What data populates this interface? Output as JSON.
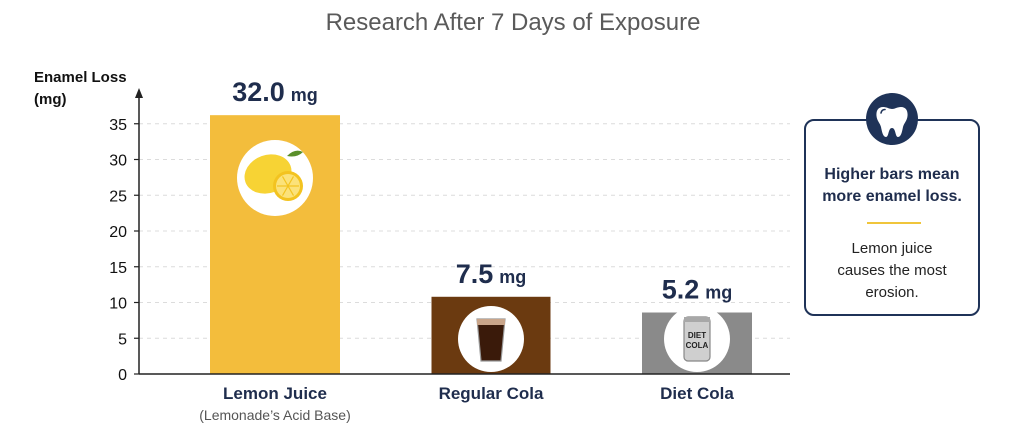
{
  "chart_data": {
    "type": "bar",
    "title": "Research After 7 Days of Exposure",
    "ylabel_line1": "Enamel Loss",
    "ylabel_line2": "(mg)",
    "ylim": [
      0,
      37
    ],
    "yticks": [
      0,
      5,
      10,
      15,
      20,
      25,
      30,
      35
    ],
    "grid": true,
    "categories": [
      "Lemon Juice",
      "Regular Cola",
      "Diet Cola"
    ],
    "category_sublabels": [
      "(Lemonade’s Acid Base)",
      "",
      ""
    ],
    "values": [
      32.0,
      7.5,
      5.2
    ],
    "value_labels": [
      "32.0",
      "7.5",
      "5.2"
    ],
    "value_unit": "mg",
    "bar_heights_visual": [
      36.2,
      10.8,
      8.6
    ],
    "colors": [
      "#f3bd3c",
      "#6b3a10",
      "#8a8a8a"
    ],
    "icons": [
      "lemon-icon",
      "cola-glass-icon",
      "diet-cola-can-icon"
    ]
  },
  "callout": {
    "icon": "tooth-icon",
    "headline_line1": "Higher bars mean",
    "headline_line2": "more enamel loss.",
    "body_line1": "Lemon juice",
    "body_line2": "causes the most",
    "body_line3": "erosion.",
    "accent": "#1f3358",
    "divider_color": "#f0c53b"
  }
}
